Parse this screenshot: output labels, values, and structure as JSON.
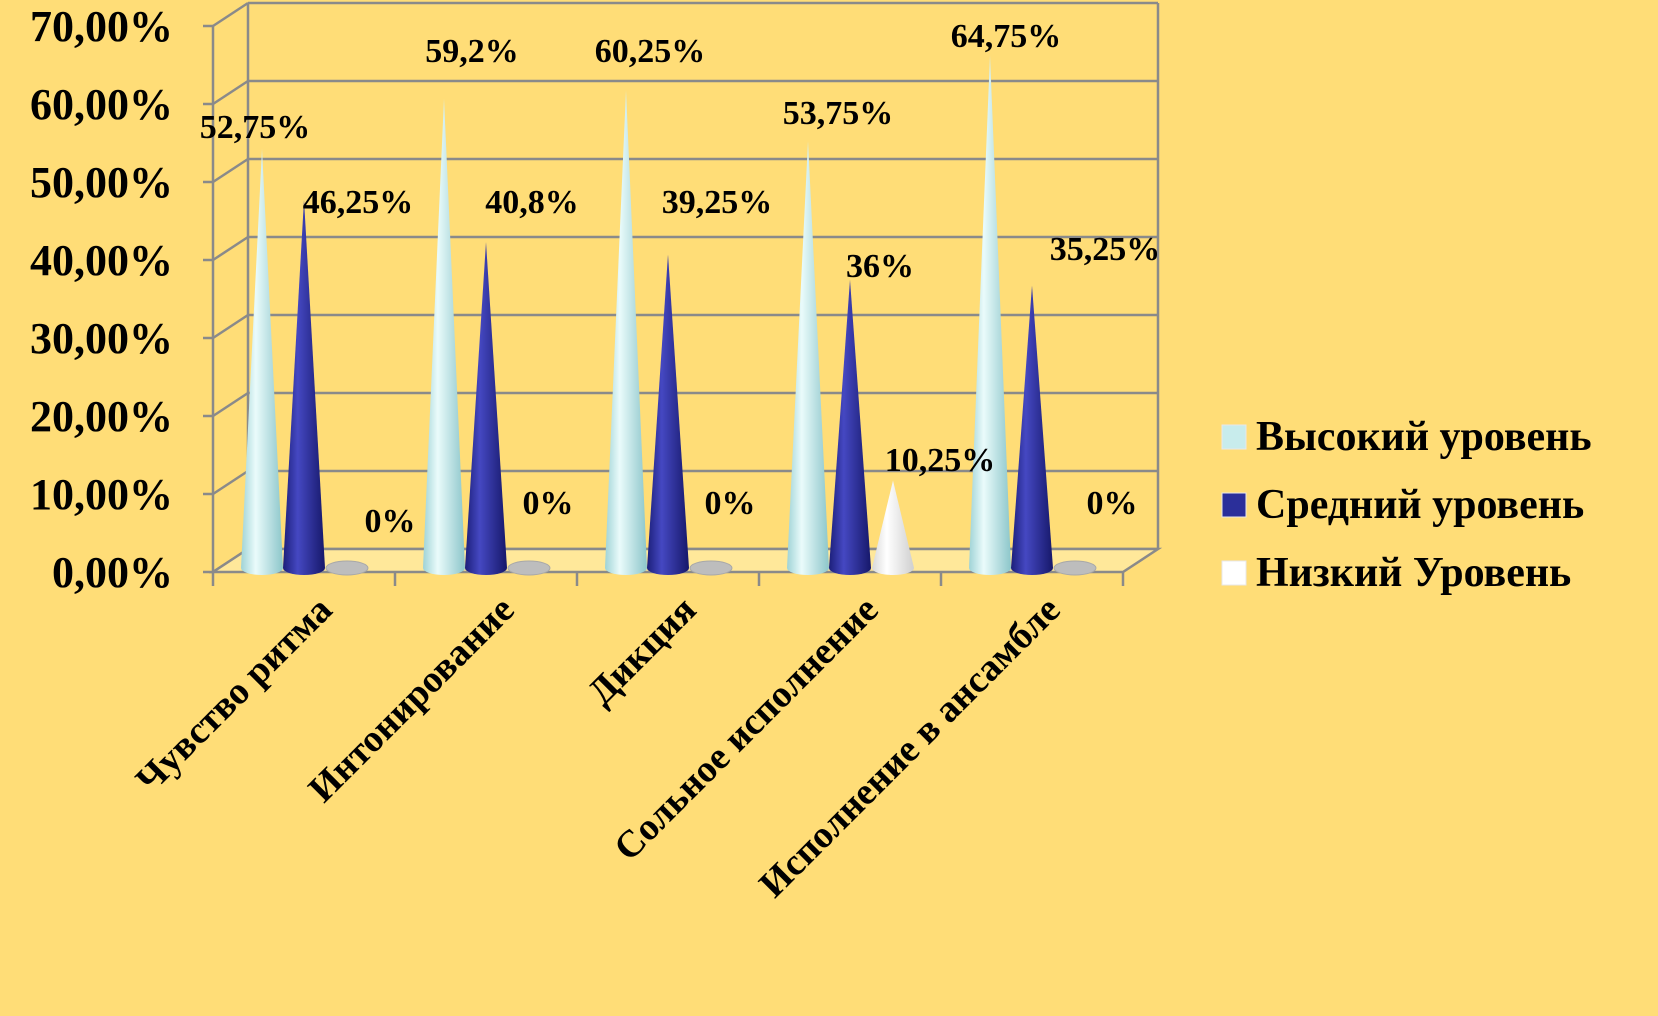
{
  "chart_data": {
    "type": "bar",
    "shape": "cone-3d",
    "title": "",
    "xlabel": "",
    "ylabel": "",
    "ylim": [
      0,
      70
    ],
    "y_ticks": [
      "0,00%",
      "10,00%",
      "20,00%",
      "30,00%",
      "40,00%",
      "50,00%",
      "60,00%",
      "70,00%"
    ],
    "grid": true,
    "legend_position": "right",
    "categories": [
      "Чувство ритма",
      "Интонирование",
      "Дикция",
      "Сольное исполнение",
      "Исполнение в ансамбле"
    ],
    "series": [
      {
        "name": "Высокий уровень",
        "color": "#C8ECEC",
        "values": [
          52.75,
          59.2,
          60.25,
          53.75,
          64.75
        ],
        "labels": [
          "52,75%",
          "59,2%",
          "60,25%",
          "53,75%",
          "64,75%"
        ]
      },
      {
        "name": "Средний уровень",
        "color": "#2B2F9A",
        "values": [
          46.25,
          40.8,
          39.25,
          36,
          35.25
        ],
        "labels": [
          "46,25%",
          "40,8%",
          "39,25%",
          "36%",
          "35,25%"
        ]
      },
      {
        "name": "Низкий Уровень",
        "color": "#FFFFFF",
        "values": [
          0,
          0,
          0,
          10.25,
          0
        ],
        "labels": [
          "0%",
          "0%",
          "0%",
          "10,25%",
          "0%"
        ]
      }
    ]
  }
}
